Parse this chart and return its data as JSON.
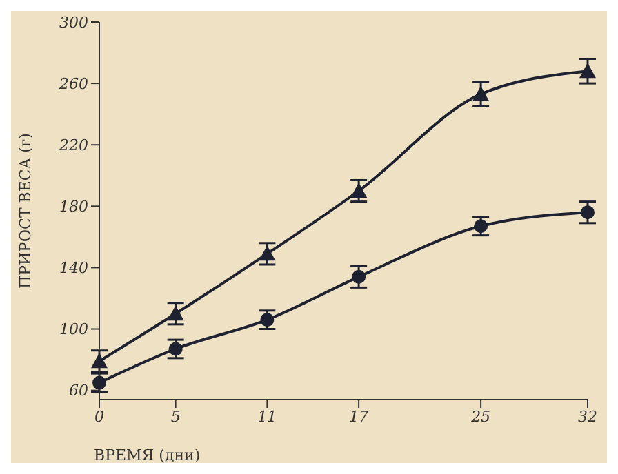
{
  "chart_data": {
    "type": "line",
    "xlabel": "ВРЕМЯ (дни)",
    "ylabel": "ПРИРОСТ ВЕСА (г)",
    "x": [
      0,
      5,
      11,
      17,
      25,
      32
    ],
    "series": [
      {
        "color": "#1e2230",
        "marker": "triangle",
        "values": [
          79,
          110,
          149,
          190,
          253,
          268
        ],
        "errors": [
          7,
          7,
          7,
          7,
          8,
          8
        ]
      },
      {
        "color": "#1e2230",
        "marker": "circle",
        "values": [
          65,
          87,
          106,
          134,
          167,
          176
        ],
        "errors": [
          6,
          6,
          6,
          7,
          6,
          7
        ]
      }
    ],
    "xlim": [
      0,
      32
    ],
    "xticks": [
      0,
      5,
      11,
      17,
      25,
      32
    ],
    "ylim": [
      54,
      300
    ],
    "yticks": [
      60,
      100,
      140,
      180,
      220,
      260,
      300
    ],
    "grid": false
  }
}
